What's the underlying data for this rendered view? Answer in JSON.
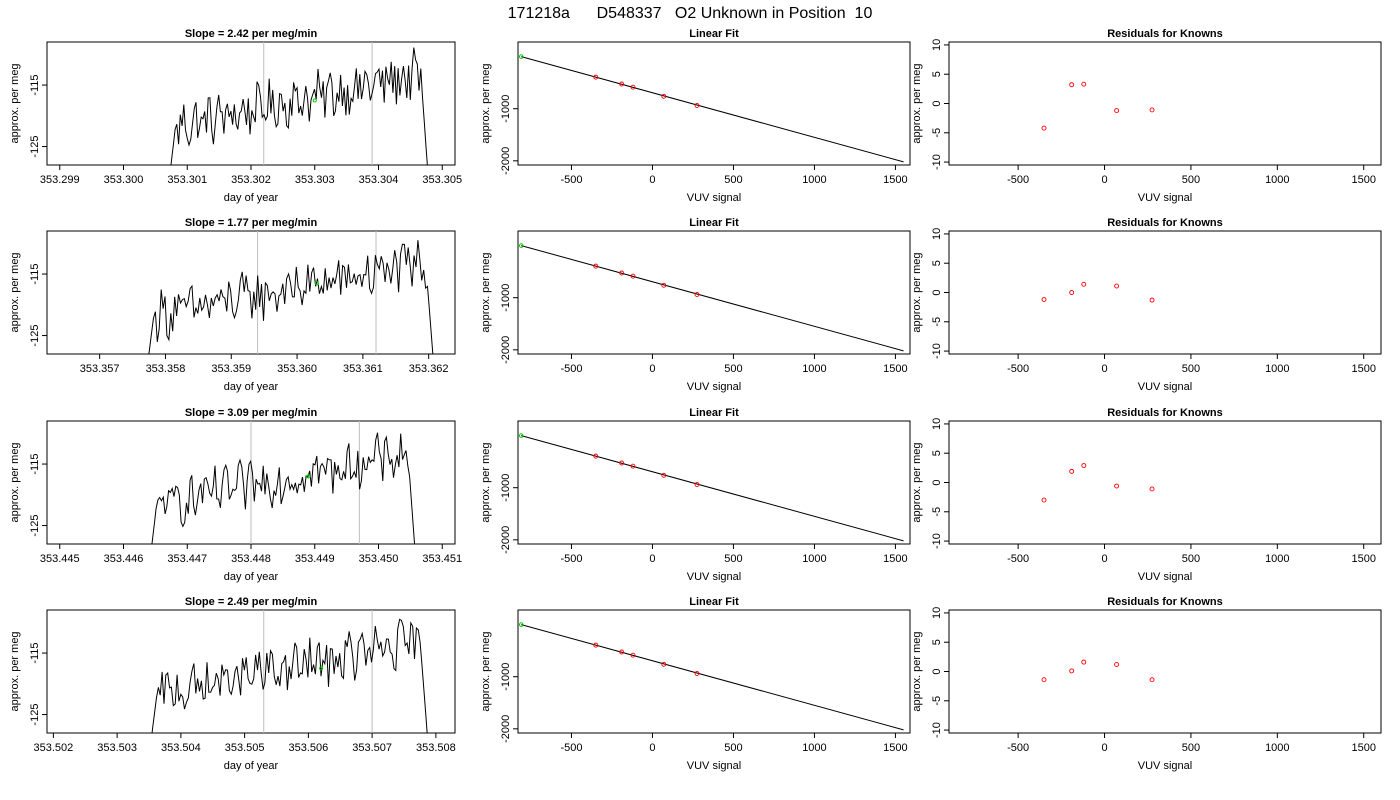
{
  "header": {
    "title": "171218a      D548337   O2 Unknown in Position  10"
  },
  "colors": {
    "trace": "#000000",
    "vline": "#bebebe",
    "green": "#00cc00",
    "red": "#ff0000",
    "fitline": "#000000"
  },
  "chart_data": [
    {
      "type": "line",
      "panel": "time",
      "row": 0,
      "title": "Slope =  2.42  per meg/min",
      "xlabel": "day of year",
      "ylabel": "approx. per meg",
      "xlim": [
        353.2988,
        353.3052
      ],
      "ylim": [
        -128,
        -108
      ],
      "xticks": [
        353.299,
        353.3,
        353.301,
        353.302,
        353.303,
        353.304,
        353.305
      ],
      "xtick_labels": [
        "353.299",
        "353.300",
        "353.301",
        "353.302",
        "353.303",
        "353.304",
        "353.305"
      ],
      "yticks": [
        -125,
        -115
      ],
      "ytick_labels": [
        "-125",
        "-115"
      ],
      "trace_start": 353.3007,
      "trace_end": 353.3048,
      "vlines": [
        353.3022,
        353.3039
      ],
      "marker": {
        "x": 353.303,
        "y": -117.5
      }
    },
    {
      "type": "line",
      "panel": "time",
      "row": 1,
      "title": "Slope =  1.77  per meg/min",
      "xlabel": "day of year",
      "ylabel": "approx. per meg",
      "xlim": [
        353.3562,
        353.3624
      ],
      "ylim": [
        -128,
        -108
      ],
      "xticks": [
        353.357,
        353.358,
        353.359,
        353.36,
        353.361,
        353.362
      ],
      "xtick_labels": [
        "353.357",
        "353.358",
        "353.359",
        "353.360",
        "353.361",
        "353.362"
      ],
      "yticks": [
        -125,
        -115
      ],
      "ytick_labels": [
        "-125",
        "-115"
      ],
      "trace_start": 353.3577,
      "trace_end": 353.3621,
      "vlines": [
        353.3594,
        353.3612
      ],
      "marker": {
        "x": 353.3603,
        "y": -116.5
      }
    },
    {
      "type": "line",
      "panel": "time",
      "row": 2,
      "title": "Slope =  3.09  per meg/min",
      "xlabel": "day of year",
      "ylabel": "approx. per meg",
      "xlim": [
        353.4448,
        353.4512
      ],
      "ylim": [
        -128,
        -108
      ],
      "xticks": [
        353.445,
        353.446,
        353.447,
        353.448,
        353.449,
        353.45,
        353.451
      ],
      "xtick_labels": [
        "353.445",
        "353.446",
        "353.447",
        "353.448",
        "353.449",
        "353.450",
        "353.451"
      ],
      "yticks": [
        -125,
        -115
      ],
      "ytick_labels": [
        "-125",
        "-115"
      ],
      "trace_start": 353.4464,
      "trace_end": 353.4506,
      "vlines": [
        353.448,
        353.4497
      ],
      "marker": {
        "x": 353.4489,
        "y": -117.0
      }
    },
    {
      "type": "line",
      "panel": "time",
      "row": 3,
      "title": "Slope =  2.49  per meg/min",
      "xlabel": "day of year",
      "ylabel": "approx. per meg",
      "xlim": [
        353.5019,
        353.5083
      ],
      "ylim": [
        -128,
        -108
      ],
      "xticks": [
        353.502,
        353.503,
        353.504,
        353.505,
        353.506,
        353.507,
        353.508
      ],
      "xtick_labels": [
        "353.502",
        "353.503",
        "353.504",
        "353.505",
        "353.506",
        "353.507",
        "353.508"
      ],
      "yticks": [
        -125,
        -115
      ],
      "ytick_labels": [
        "-125",
        "-115"
      ],
      "trace_start": 353.5035,
      "trace_end": 353.5079,
      "vlines": [
        353.5053,
        353.507
      ],
      "marker": {
        "x": 353.5062,
        "y": -117.5
      }
    },
    {
      "type": "scatter",
      "panel": "fit",
      "row": 0,
      "title": "Linear Fit",
      "xlabel": "VUV signal",
      "ylabel": "approx. per meg",
      "xlim": [
        -830,
        1590
      ],
      "ylim": [
        -2080,
        280
      ],
      "xticks": [
        -500,
        0,
        500,
        1000,
        1500
      ],
      "xtick_labels": [
        "-500",
        "0",
        "500",
        "1000",
        "1500"
      ],
      "yticks": [
        -2000,
        -1000
      ],
      "ytick_labels": [
        "-2000",
        "-1000"
      ],
      "line": {
        "x": [
          -810,
          1550
        ],
        "y": [
          0,
          -2020
        ]
      },
      "unknown": {
        "x": -810,
        "y": 0
      },
      "knowns": {
        "x": [
          -350,
          -190,
          -120,
          70,
          275
        ],
        "y": [
          -394,
          -526,
          -587,
          -762,
          -938
        ]
      }
    },
    {
      "type": "scatter",
      "panel": "fit",
      "row": 1,
      "title": "Linear Fit",
      "xlabel": "VUV signal",
      "ylabel": "approx. per meg",
      "xlim": [
        -830,
        1590
      ],
      "ylim": [
        -2080,
        280
      ],
      "xticks": [
        -500,
        0,
        500,
        1000,
        1500
      ],
      "xtick_labels": [
        "-500",
        "0",
        "500",
        "1000",
        "1500"
      ],
      "yticks": [
        -2000,
        -1000
      ],
      "ytick_labels": [
        "-2000",
        "-1000"
      ],
      "line": {
        "x": [
          -810,
          1550
        ],
        "y": [
          0,
          -2020
        ]
      },
      "unknown": {
        "x": -810,
        "y": 0
      },
      "knowns": {
        "x": [
          -350,
          -190,
          -120,
          70,
          275
        ],
        "y": [
          -394,
          -526,
          -587,
          -762,
          -938
        ]
      }
    },
    {
      "type": "scatter",
      "panel": "fit",
      "row": 2,
      "title": "Linear Fit",
      "xlabel": "VUV signal",
      "ylabel": "approx. per meg",
      "xlim": [
        -830,
        1590
      ],
      "ylim": [
        -2080,
        280
      ],
      "xticks": [
        -500,
        0,
        500,
        1000,
        1500
      ],
      "xtick_labels": [
        "-500",
        "0",
        "500",
        "1000",
        "1500"
      ],
      "yticks": [
        -2000,
        -1000
      ],
      "ytick_labels": [
        "-2000",
        "-1000"
      ],
      "line": {
        "x": [
          -810,
          1550
        ],
        "y": [
          0,
          -2020
        ]
      },
      "unknown": {
        "x": -810,
        "y": 0
      },
      "knowns": {
        "x": [
          -350,
          -190,
          -120,
          70,
          275
        ],
        "y": [
          -394,
          -526,
          -587,
          -762,
          -938
        ]
      }
    },
    {
      "type": "scatter",
      "panel": "fit",
      "row": 3,
      "title": "Linear Fit",
      "xlabel": "VUV signal",
      "ylabel": "approx. per meg",
      "xlim": [
        -830,
        1590
      ],
      "ylim": [
        -2080,
        280
      ],
      "xticks": [
        -500,
        0,
        500,
        1000,
        1500
      ],
      "xtick_labels": [
        "-500",
        "0",
        "500",
        "1000",
        "1500"
      ],
      "yticks": [
        -2000,
        -1000
      ],
      "ytick_labels": [
        "-2000",
        "-1000"
      ],
      "line": {
        "x": [
          -810,
          1550
        ],
        "y": [
          0,
          -2020
        ]
      },
      "unknown": {
        "x": -810,
        "y": 0
      },
      "knowns": {
        "x": [
          -350,
          -190,
          -120,
          70,
          275
        ],
        "y": [
          -394,
          -526,
          -587,
          -762,
          -938
        ]
      }
    },
    {
      "type": "scatter",
      "panel": "resid",
      "row": 0,
      "title": "Residuals for Knowns",
      "xlabel": "VUV signal",
      "ylabel": "approx. per meg",
      "xlim": [
        -900,
        1600
      ],
      "ylim": [
        -10.5,
        10.5
      ],
      "xticks": [
        -500,
        0,
        500,
        1000,
        1500
      ],
      "xtick_labels": [
        "-500",
        "0",
        "500",
        "1000",
        "1500"
      ],
      "yticks": [
        -10,
        -5,
        0,
        5,
        10
      ],
      "ytick_labels": [
        "-10",
        "-5",
        "0",
        "5",
        "10"
      ],
      "knowns": {
        "x": [
          -350,
          -190,
          -120,
          70,
          275
        ],
        "y": [
          -4.2,
          3.2,
          3.3,
          -1.2,
          -1.1
        ]
      }
    },
    {
      "type": "scatter",
      "panel": "resid",
      "row": 1,
      "title": "Residuals for Knowns",
      "xlabel": "VUV signal",
      "ylabel": "approx. per meg",
      "xlim": [
        -900,
        1600
      ],
      "ylim": [
        -10.5,
        10.5
      ],
      "xticks": [
        -500,
        0,
        500,
        1000,
        1500
      ],
      "xtick_labels": [
        "-500",
        "0",
        "500",
        "1000",
        "1500"
      ],
      "yticks": [
        -10,
        -5,
        0,
        5,
        10
      ],
      "ytick_labels": [
        "-10",
        "-5",
        "0",
        "5",
        "10"
      ],
      "knowns": {
        "x": [
          -350,
          -190,
          -120,
          70,
          275
        ],
        "y": [
          -1.2,
          0.0,
          1.4,
          1.1,
          -1.3
        ]
      }
    },
    {
      "type": "scatter",
      "panel": "resid",
      "row": 2,
      "title": "Residuals for Knowns",
      "xlabel": "VUV signal",
      "ylabel": "approx. per meg",
      "xlim": [
        -900,
        1600
      ],
      "ylim": [
        -10.5,
        10.5
      ],
      "xticks": [
        -500,
        0,
        500,
        1000,
        1500
      ],
      "xtick_labels": [
        "-500",
        "0",
        "500",
        "1000",
        "1500"
      ],
      "yticks": [
        -10,
        -5,
        0,
        5,
        10
      ],
      "ytick_labels": [
        "-10",
        "-5",
        "0",
        "5",
        "10"
      ],
      "knowns": {
        "x": [
          -350,
          -190,
          -120,
          70,
          275
        ],
        "y": [
          -3.0,
          1.9,
          2.9,
          -0.6,
          -1.1
        ]
      }
    },
    {
      "type": "scatter",
      "panel": "resid",
      "row": 3,
      "title": "Residuals for Knowns",
      "xlabel": "VUV signal",
      "ylabel": "approx. per meg",
      "xlim": [
        -900,
        1600
      ],
      "ylim": [
        -10.5,
        10.5
      ],
      "xticks": [
        -500,
        0,
        500,
        1000,
        1500
      ],
      "xtick_labels": [
        "-500",
        "0",
        "500",
        "1000",
        "1500"
      ],
      "yticks": [
        -10,
        -5,
        0,
        5,
        10
      ],
      "ytick_labels": [
        "-10",
        "-5",
        "0",
        "5",
        "10"
      ],
      "knowns": {
        "x": [
          -350,
          -190,
          -120,
          70,
          275
        ],
        "y": [
          -1.4,
          0.1,
          1.6,
          1.2,
          -1.4
        ]
      }
    }
  ]
}
